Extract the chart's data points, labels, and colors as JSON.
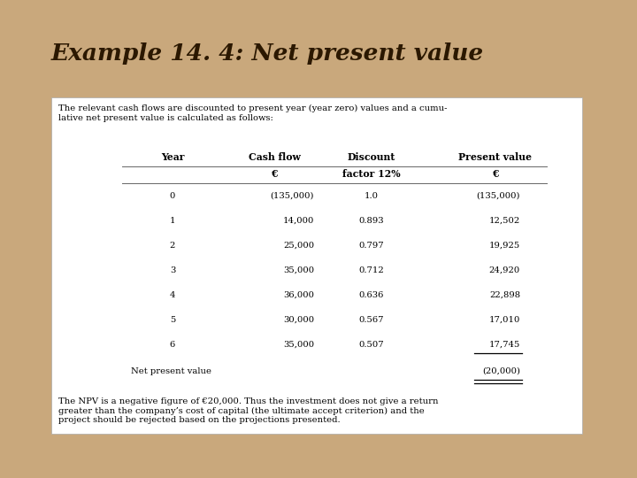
{
  "title": "Example 14. 4: Net present value",
  "bg_color": "#C9A87C",
  "white_box_color": "#FFFFFF",
  "intro_text": "The relevant cash flows are discounted to present year (year zero) values and a cumu-\nlative net present value is calculated as follows:",
  "col_headers_line1": [
    "Year",
    "Cash flow",
    "Discount",
    "Present value"
  ],
  "col_headers_line2": [
    "",
    "€",
    "factor 12%",
    "€"
  ],
  "years": [
    "0",
    "1",
    "2",
    "3",
    "4",
    "5",
    "6"
  ],
  "cash_flows": [
    "(135,000)",
    "14,000",
    "25,000",
    "35,000",
    "36,000",
    "30,000",
    "35,000"
  ],
  "discount_factors": [
    "1.0",
    "0.893",
    "0.797",
    "0.712",
    "0.636",
    "0.567",
    "0.507"
  ],
  "present_values": [
    "(135,000)",
    "12,502",
    "19,925",
    "24,920",
    "22,898",
    "17,010",
    "17,745"
  ],
  "npv_label": "Net present value",
  "npv_value": "(20,000)",
  "footer_text": "The NPV is a negative figure of €20,000. Thus the investment does not give a return\ngreater than the company’s cost of capital (the ultimate accept criterion) and the\nproject should be rejected based on the projections presented.",
  "title_color": "#2B1800",
  "table_text_color": "#000000",
  "title_fontsize": 19,
  "body_fontsize": 7.2,
  "header_fontsize": 7.8
}
